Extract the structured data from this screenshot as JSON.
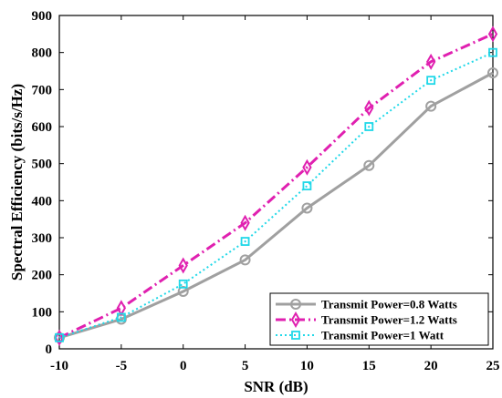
{
  "chart_data": {
    "type": "line",
    "xlabel": "SNR (dB)",
    "ylabel": "Spectral Efficiency (bits/s/Hz)",
    "x": [
      -10,
      -5,
      0,
      5,
      10,
      15,
      20,
      25
    ],
    "xticks": [
      "-10",
      "-5",
      "0",
      "5",
      "10",
      "15",
      "20",
      "25"
    ],
    "yticks": [
      "0",
      "100",
      "200",
      "300",
      "400",
      "500",
      "600",
      "700",
      "800",
      "900"
    ],
    "xlim": [
      -10,
      25
    ],
    "ylim": [
      0,
      900
    ],
    "grid": false,
    "legend_position": "bottom-right",
    "series": [
      {
        "name": "Transmit Power=0.8 Watts",
        "values": [
          30,
          80,
          155,
          240,
          380,
          495,
          655,
          745
        ],
        "color": "#a0a0a0",
        "marker": "circle",
        "dash": "solid"
      },
      {
        "name": "Transmit Power=1.2 Watts",
        "values": [
          30,
          110,
          225,
          340,
          490,
          650,
          775,
          850
        ],
        "color": "#e020b0",
        "marker": "diamond",
        "dash": "dashdot"
      },
      {
        "name": "Transmit Power=1 Watt",
        "values": [
          30,
          85,
          175,
          290,
          440,
          600,
          725,
          800
        ],
        "color": "#20d8e8",
        "marker": "square",
        "dash": "dotted"
      }
    ]
  }
}
